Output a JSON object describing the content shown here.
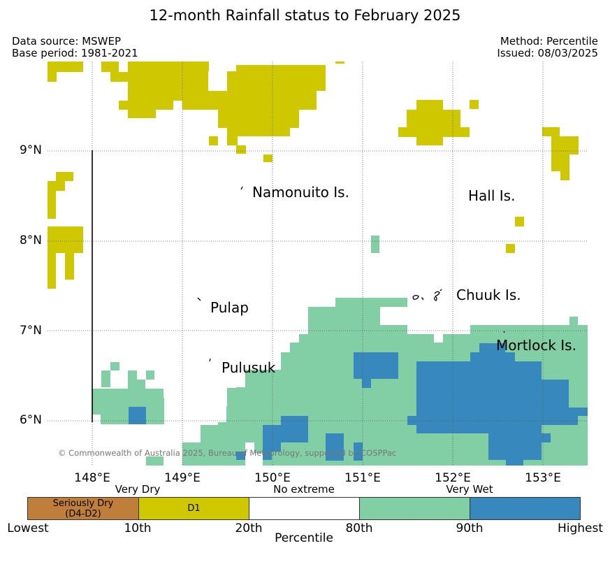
{
  "title": "12-month Rainfall status to February 2025",
  "meta": {
    "data_source": "Data source: MSWEP",
    "base_period": "Base period: 1981-2021",
    "method": "Method: Percentile",
    "issued": "Issued: 08/03/2025"
  },
  "map": {
    "lon_range": [
      147.5,
      153.5
    ],
    "lat_range": [
      5.5,
      9.98
    ],
    "lat_labels": [
      "9°N",
      "8°N",
      "7°N",
      "6°N"
    ],
    "lon_labels": [
      "148°E",
      "149°E",
      "150°E",
      "151°E",
      "152°E",
      "153°E"
    ],
    "places": {
      "namonuito": "Namonuito Is.",
      "hall": "Hall Is.",
      "pulap": "Pulap",
      "chuuk": "Chuuk Is.",
      "pulusuk": "Pulusuk",
      "mortlock": "Mortlock Is."
    },
    "copyright": "© Commonwealth of Australia 2025, Bureau of Meteorology, supported by COSPPac"
  },
  "legend": {
    "categories": {
      "very_dry": "Very Dry",
      "no_extreme": "No extreme",
      "very_wet": "Very Wet"
    },
    "segments": [
      {
        "label": "Seriously Dry\n(D4-D2)",
        "color": "#bf7e3a"
      },
      {
        "label": "D1",
        "color": "#cfc800"
      },
      {
        "label": "",
        "color": "#ffffff"
      },
      {
        "label": "",
        "color": "#82cfa6"
      },
      {
        "label": "",
        "color": "#3688bd"
      }
    ],
    "ticks": {
      "lowest": "Lowest",
      "p10": "10th",
      "p20": "20th",
      "p80": "80th",
      "p90": "90th",
      "highest": "Highest"
    },
    "axis_label": "Percentile"
  },
  "colors": {
    "d1": "#cfc800",
    "very_wet": "#82cfa6",
    "highest": "#3688bd"
  }
}
